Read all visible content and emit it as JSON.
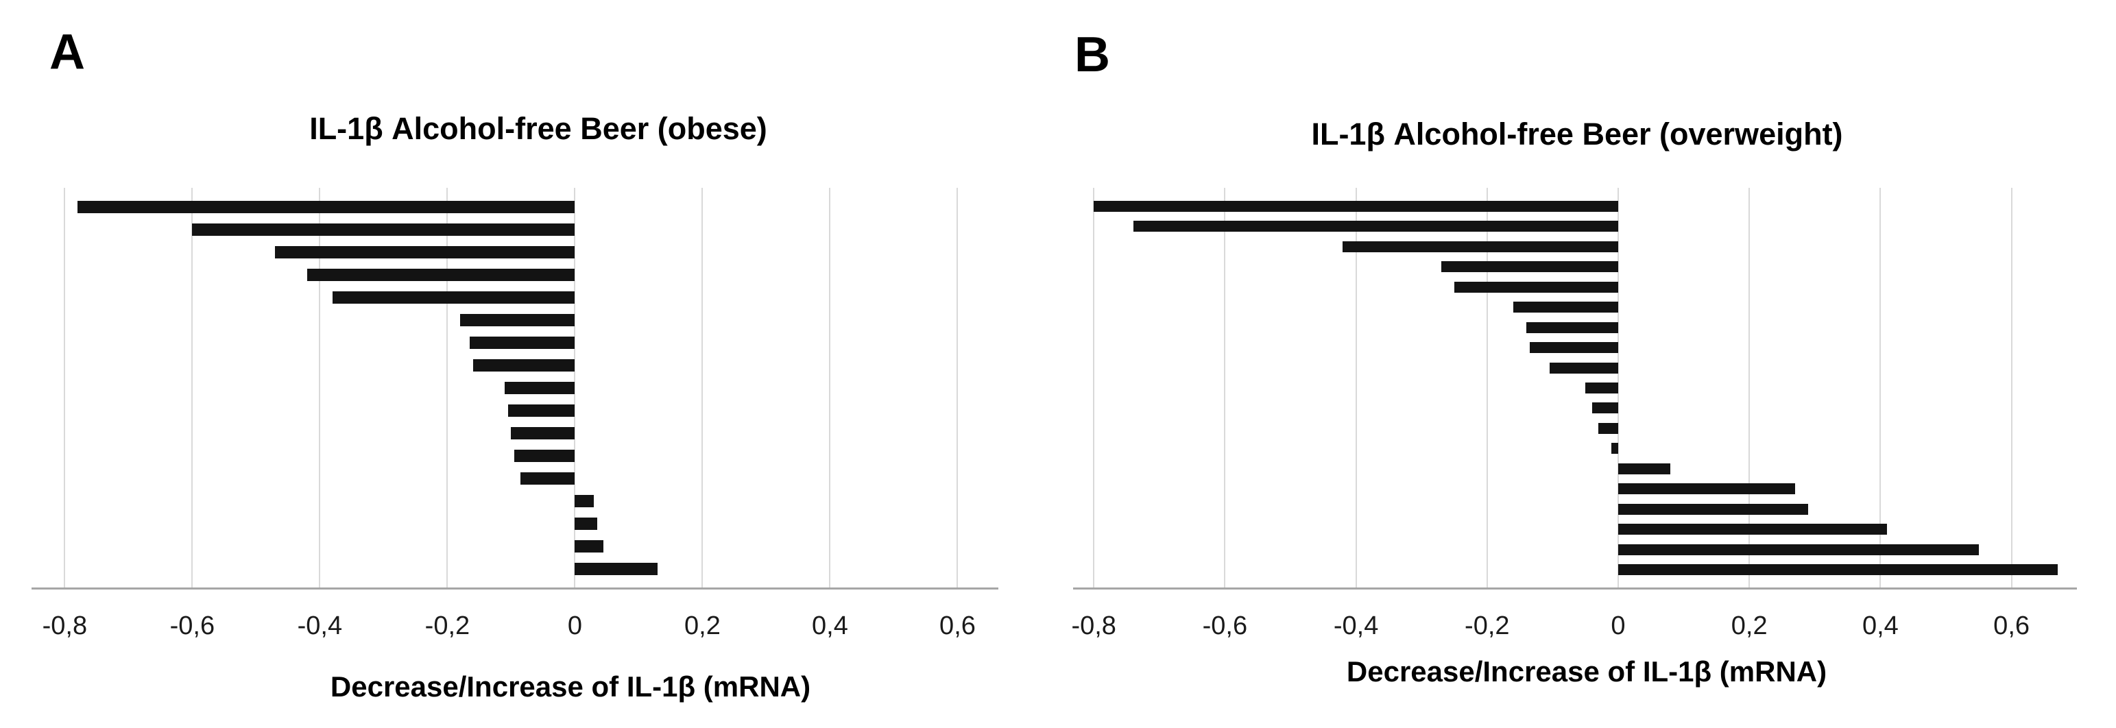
{
  "figure": {
    "background": "#ffffff",
    "text_color": "#000000"
  },
  "chart_data": [
    {
      "panel_label": "A",
      "type": "bar",
      "orientation": "horizontal",
      "title": "IL-1β Alcohol-free Beer (obese)",
      "xlabel": "Decrease/Increase of IL-1β (mRNA)",
      "ylabel": "",
      "values": [
        -0.78,
        -0.6,
        -0.47,
        -0.42,
        -0.38,
        -0.18,
        -0.165,
        -0.16,
        -0.11,
        -0.105,
        -0.1,
        -0.095,
        -0.085,
        0.03,
        0.035,
        0.045,
        0.13
      ],
      "xlim": [
        -0.852,
        0.664
      ],
      "xticks": [
        -0.8,
        -0.6,
        -0.4,
        -0.2,
        0,
        0.2,
        0.4,
        0.6
      ],
      "xtick_labels": [
        "-0,8",
        "-0,6",
        "-0,4",
        "-0,2",
        "0",
        "0,2",
        "0,4",
        "0,6"
      ],
      "grid": true,
      "legend": false,
      "bar_color": "#131313",
      "gridline_color": "#d9d9d9",
      "axis_line_color": "#a6a6a6"
    },
    {
      "panel_label": "B",
      "type": "bar",
      "orientation": "horizontal",
      "title": "IL-1β Alcohol-free Beer (overweight)",
      "xlabel": "Decrease/Increase of IL-1β (mRNA)",
      "ylabel": "",
      "values": [
        -0.8,
        -0.74,
        -0.42,
        -0.27,
        -0.25,
        -0.16,
        -0.14,
        -0.135,
        -0.105,
        -0.05,
        -0.04,
        -0.03,
        -0.01,
        0.08,
        0.27,
        0.29,
        0.41,
        0.55,
        0.67
      ],
      "xlim": [
        -0.832,
        0.7
      ],
      "xticks": [
        -0.8,
        -0.6,
        -0.4,
        -0.2,
        0,
        0.2,
        0.4,
        0.6
      ],
      "xtick_labels": [
        "-0,8",
        "-0,6",
        "-0,4",
        "-0,2",
        "0",
        "0,2",
        "0,4",
        "0,6"
      ],
      "grid": true,
      "legend": false,
      "bar_color": "#131313",
      "gridline_color": "#d9d9d9",
      "axis_line_color": "#a6a6a6"
    }
  ]
}
